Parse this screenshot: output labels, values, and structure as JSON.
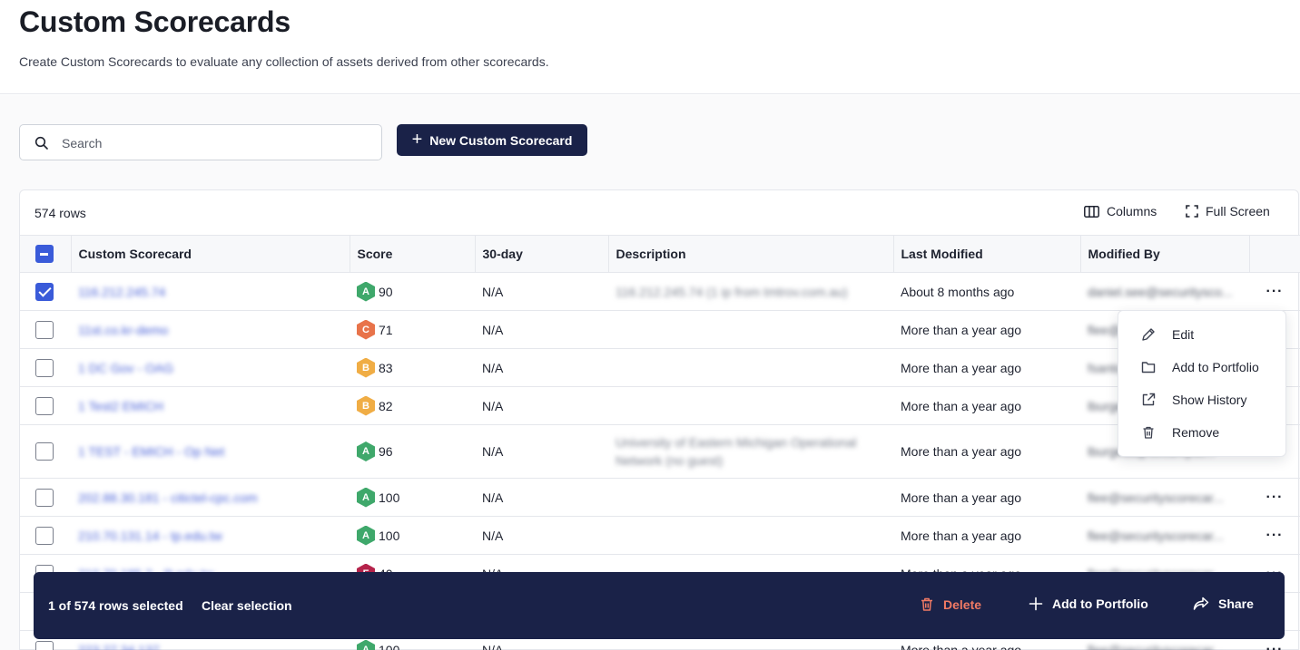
{
  "page": {
    "title": "Custom Scorecards",
    "subtitle": "Create Custom Scorecards to evaluate any collection of assets derived from other scorecards."
  },
  "toolbar": {
    "search_placeholder": "Search",
    "new_button_label": "New Custom Scorecard"
  },
  "table": {
    "row_count": "574 rows",
    "columns_label": "Columns",
    "fullscreen_label": "Full Screen",
    "headers": [
      "Custom Scorecard",
      "Score",
      "30-day",
      "Description",
      "Last Modified",
      "Modified By"
    ],
    "rows": [
      {
        "name": "116.212.245.74",
        "grade": "A",
        "grade_color": "#3fa86b",
        "score": "90",
        "day30": "N/A",
        "description": "116.212.245.74 (1 ip from tmtrov.com.au)",
        "modified": "About 8 months ago",
        "modified_by": "daniel.see@securitysco...",
        "checked": true
      },
      {
        "name": "11st.co.kr-demo",
        "grade": "C",
        "grade_color": "#e8734a",
        "score": "71",
        "day30": "N/A",
        "description": "",
        "modified": "More than a year ago",
        "modified_by": "flee@securityscorecar...",
        "checked": false
      },
      {
        "name": "1 DC Gov - OAG",
        "grade": "B",
        "grade_color": "#f0ad45",
        "score": "83",
        "day30": "N/A",
        "description": "",
        "modified": "More than a year ago",
        "modified_by": "fsantos@securityscore...",
        "checked": false
      },
      {
        "name": "1 Test2 EMICH",
        "grade": "B",
        "grade_color": "#f0ad45",
        "score": "82",
        "day30": "N/A",
        "description": "",
        "modified": "More than a year ago",
        "modified_by": "lburgess@securitysc...",
        "checked": false
      },
      {
        "name": "1 TEST - EMICH - Op Net",
        "grade": "A",
        "grade_color": "#3fa86b",
        "score": "96",
        "day30": "N/A",
        "description": "University of Eastern Michigan Operational Network (no guest)",
        "modified": "More than a year ago",
        "modified_by": "lburgess@securitysc...",
        "checked": false
      },
      {
        "name": "202.88.30.181 - citictel-cpc.com",
        "grade": "A",
        "grade_color": "#3fa86b",
        "score": "100",
        "day30": "N/A",
        "description": "",
        "modified": "More than a year ago",
        "modified_by": "flee@securityscorecar...",
        "checked": false
      },
      {
        "name": "210.70.131.14 - tp.edu.tw",
        "grade": "A",
        "grade_color": "#3fa86b",
        "score": "100",
        "day30": "N/A",
        "description": "",
        "modified": "More than a year ago",
        "modified_by": "flee@securityscorecar...",
        "checked": false
      },
      {
        "name": "210.70.185.2 - ilt.edu.tw",
        "grade": "F",
        "grade_color": "#b5234b",
        "score": "40",
        "day30": "N/A",
        "description": "",
        "modified": "More than a year ago",
        "modified_by": "flee@securityscorecar...",
        "checked": false
      },
      {
        "name": "",
        "grade": "",
        "grade_color": "#3fa86b",
        "score": "",
        "day30": "",
        "description": "",
        "modified": "",
        "modified_by": "",
        "checked": false
      },
      {
        "name": "223.27.34.137",
        "grade": "A",
        "grade_color": "#3fa86b",
        "score": "100",
        "day30": "N/A",
        "description": "",
        "modified": "More than a year ago",
        "modified_by": "flee@securityscorecar...",
        "checked": false
      }
    ]
  },
  "context_menu": {
    "items": [
      {
        "label": "Edit",
        "icon": "pencil-icon"
      },
      {
        "label": "Add to Portfolio",
        "icon": "folder-icon"
      },
      {
        "label": "Show History",
        "icon": "external-link-icon"
      },
      {
        "label": "Remove",
        "icon": "trash-icon"
      }
    ]
  },
  "selection_bar": {
    "count_text": "1 of 574 rows selected",
    "clear_label": "Clear selection",
    "delete_label": "Delete",
    "add_portfolio_label": "Add to Portfolio",
    "share_label": "Share",
    "delete_color": "#f07a64"
  }
}
